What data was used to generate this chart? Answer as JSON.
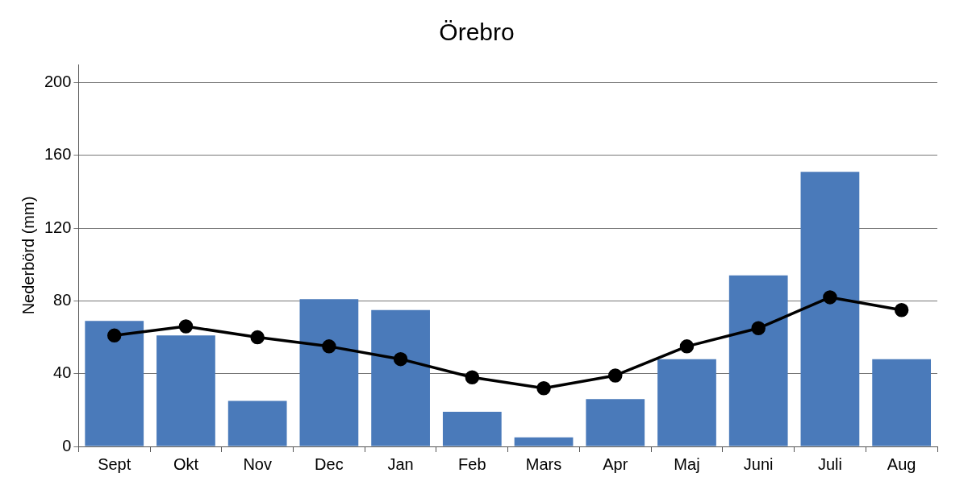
{
  "chart_data": {
    "type": "bar",
    "title": "Örebro",
    "ylabel": "Nederbörd (mm)",
    "categories": [
      "Sept",
      "Okt",
      "Nov",
      "Dec",
      "Jan",
      "Feb",
      "Mars",
      "Apr",
      "Maj",
      "Juni",
      "Juli",
      "Aug"
    ],
    "series": [
      {
        "color": "#4a7aba",
        "values": [
          69,
          61,
          25,
          81,
          75,
          19,
          5,
          26,
          48,
          94,
          151,
          48
        ]
      },
      {
        "type": "line",
        "color": "#000000",
        "marker": "circle",
        "line_style": "solid",
        "values": [
          61,
          66,
          60,
          55,
          48,
          38,
          32,
          39,
          55,
          65,
          82,
          75
        ]
      }
    ],
    "ylim": [
      0,
      210
    ],
    "yticks": [
      0,
      40,
      80,
      120,
      160,
      200
    ],
    "grid": "y",
    "legend": false
  }
}
